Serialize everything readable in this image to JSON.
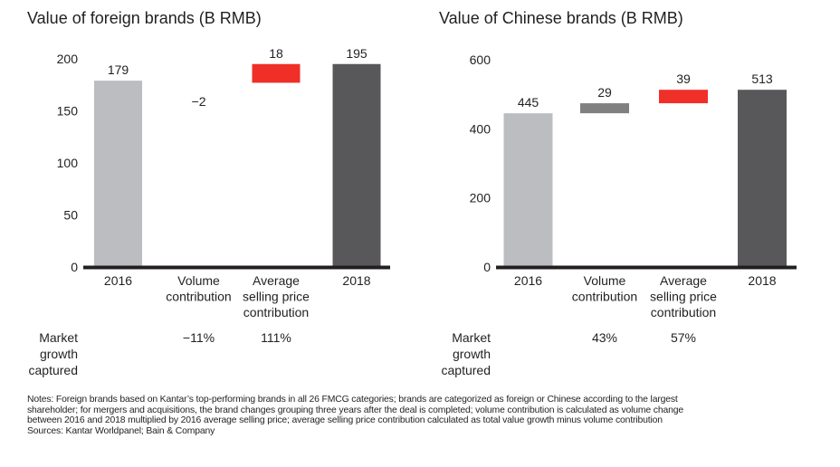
{
  "chart_data": [
    {
      "type": "bar",
      "subtype": "waterfall",
      "title": "Value of foreign brands (B RMB)",
      "xlabel": "",
      "ylabel": "",
      "ylim": [
        0,
        200
      ],
      "yticks": [
        0,
        50,
        100,
        150,
        200
      ],
      "grid": false,
      "categories": [
        "2016",
        "Volume contribution",
        "Average selling price contribution",
        "2018"
      ],
      "category_lines": [
        [
          "2016"
        ],
        [
          "Volume",
          "contribution"
        ],
        [
          "Average",
          "selling price",
          "contribution"
        ],
        [
          "2018"
        ]
      ],
      "values": [
        179,
        -2,
        18,
        195
      ],
      "data_labels": [
        "179",
        "−2",
        "18",
        "195"
      ],
      "bar_kinds": [
        "total",
        "delta",
        "delta",
        "total"
      ],
      "colors": [
        "#bcbdc0",
        "#808080",
        "#ef2f28",
        "#58585a"
      ],
      "market_growth_label": [
        "Market",
        "growth",
        "captured"
      ],
      "market_growth_captured": [
        "",
        "−11%",
        "111%",
        ""
      ]
    },
    {
      "type": "bar",
      "subtype": "waterfall",
      "title": "Value of Chinese brands (B RMB)",
      "xlabel": "",
      "ylabel": "",
      "ylim": [
        0,
        600
      ],
      "yticks": [
        0,
        200,
        400,
        600
      ],
      "grid": false,
      "categories": [
        "2016",
        "Volume contribution",
        "Average selling price contribution",
        "2018"
      ],
      "category_lines": [
        [
          "2016"
        ],
        [
          "Volume",
          "contribution"
        ],
        [
          "Average",
          "selling price",
          "contribution"
        ],
        [
          "2018"
        ]
      ],
      "values": [
        445,
        29,
        39,
        513
      ],
      "data_labels": [
        "445",
        "29",
        "39",
        "513"
      ],
      "bar_kinds": [
        "total",
        "delta",
        "delta",
        "total"
      ],
      "colors": [
        "#bcbdc0",
        "#808080",
        "#ef2f28",
        "#58585a"
      ],
      "market_growth_label": [
        "Market",
        "growth",
        "captured"
      ],
      "market_growth_captured": [
        "",
        "43%",
        "57%",
        ""
      ]
    }
  ],
  "notes": [
    "Notes: Foreign brands based on Kantar’s top-performing brands in all 26 FMCG categories; brands are categorized as foreign or Chinese according to the largest",
    "shareholder; for mergers and acquisitions, the brand changes grouping three years after the deal is completed; volume contribution is calculated as volume change",
    "between 2016 and 2018 multiplied by 2016 average selling price; average selling price contribution calculated as total value growth minus volume contribution",
    "Sources: Kantar Worldpanel; Bain & Company"
  ]
}
